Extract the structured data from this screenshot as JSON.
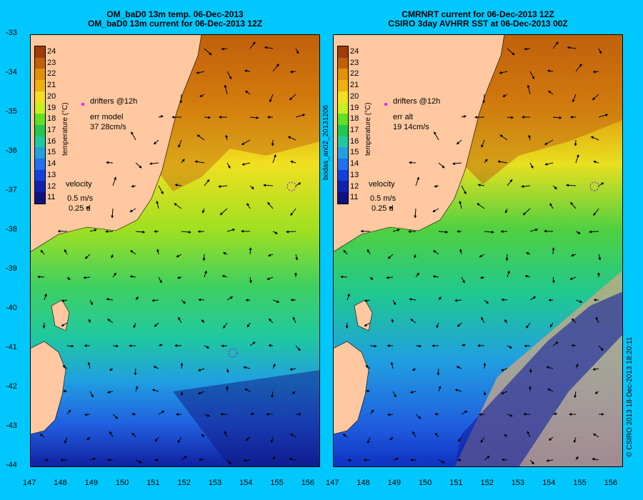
{
  "left_panel": {
    "title_line1": "OM_baD0 13m temp. 06-Dec-2013",
    "title_line2": "OM_baD0 13m current for 06-Dec-2013 12Z",
    "drifters_label": "drifters @12h",
    "err_label": "err model",
    "err_value": "37 28cm/s",
    "velocity_label": "velocity",
    "velocity_scale": "0.5 m/s",
    "velocity_time": "0.25 d"
  },
  "right_panel": {
    "title_line1": "CMRNRT current for 06-Dec-2013 12Z",
    "title_line2": "CSIRO 3day AVHRR SST at 06-Dec-2013 00Z",
    "drifters_label": "drifters @12h",
    "err_label": "err alt",
    "err_value": "19 14cm/s",
    "velocity_label": "velocity",
    "velocity_scale": "0.5 m/s",
    "velocity_time": "0.25 d"
  },
  "colorbar": {
    "label": "temperature (°C)",
    "ticks": [
      "24",
      "23",
      "22",
      "21",
      "20",
      "19",
      "18",
      "17",
      "16",
      "15",
      "14",
      "13",
      "12",
      "11"
    ],
    "colors": [
      "#a03c0a",
      "#c0600a",
      "#e0900a",
      "#f0b010",
      "#f0e020",
      "#c8f020",
      "#60e020",
      "#20c850",
      "#20c8a0",
      "#20a0e0",
      "#2070f0",
      "#1040e0",
      "#1020b0",
      "#101080"
    ]
  },
  "axes": {
    "x_ticks": [
      "147",
      "148",
      "149",
      "150",
      "151",
      "152",
      "153",
      "154",
      "155",
      "156"
    ],
    "y_ticks": [
      "-33",
      "-34",
      "-35",
      "-36",
      "-37",
      "-38",
      "-39",
      "-40",
      "-41",
      "-42",
      "-43",
      "-44"
    ]
  },
  "side_label": "bodas_an02_20131206",
  "copyright": "© CSIRO 2013   18-Dec-2013 18:20:11",
  "colors": {
    "background": "#00c8ff",
    "land": "#ffc8a0",
    "drifter": "#ff00ff"
  }
}
